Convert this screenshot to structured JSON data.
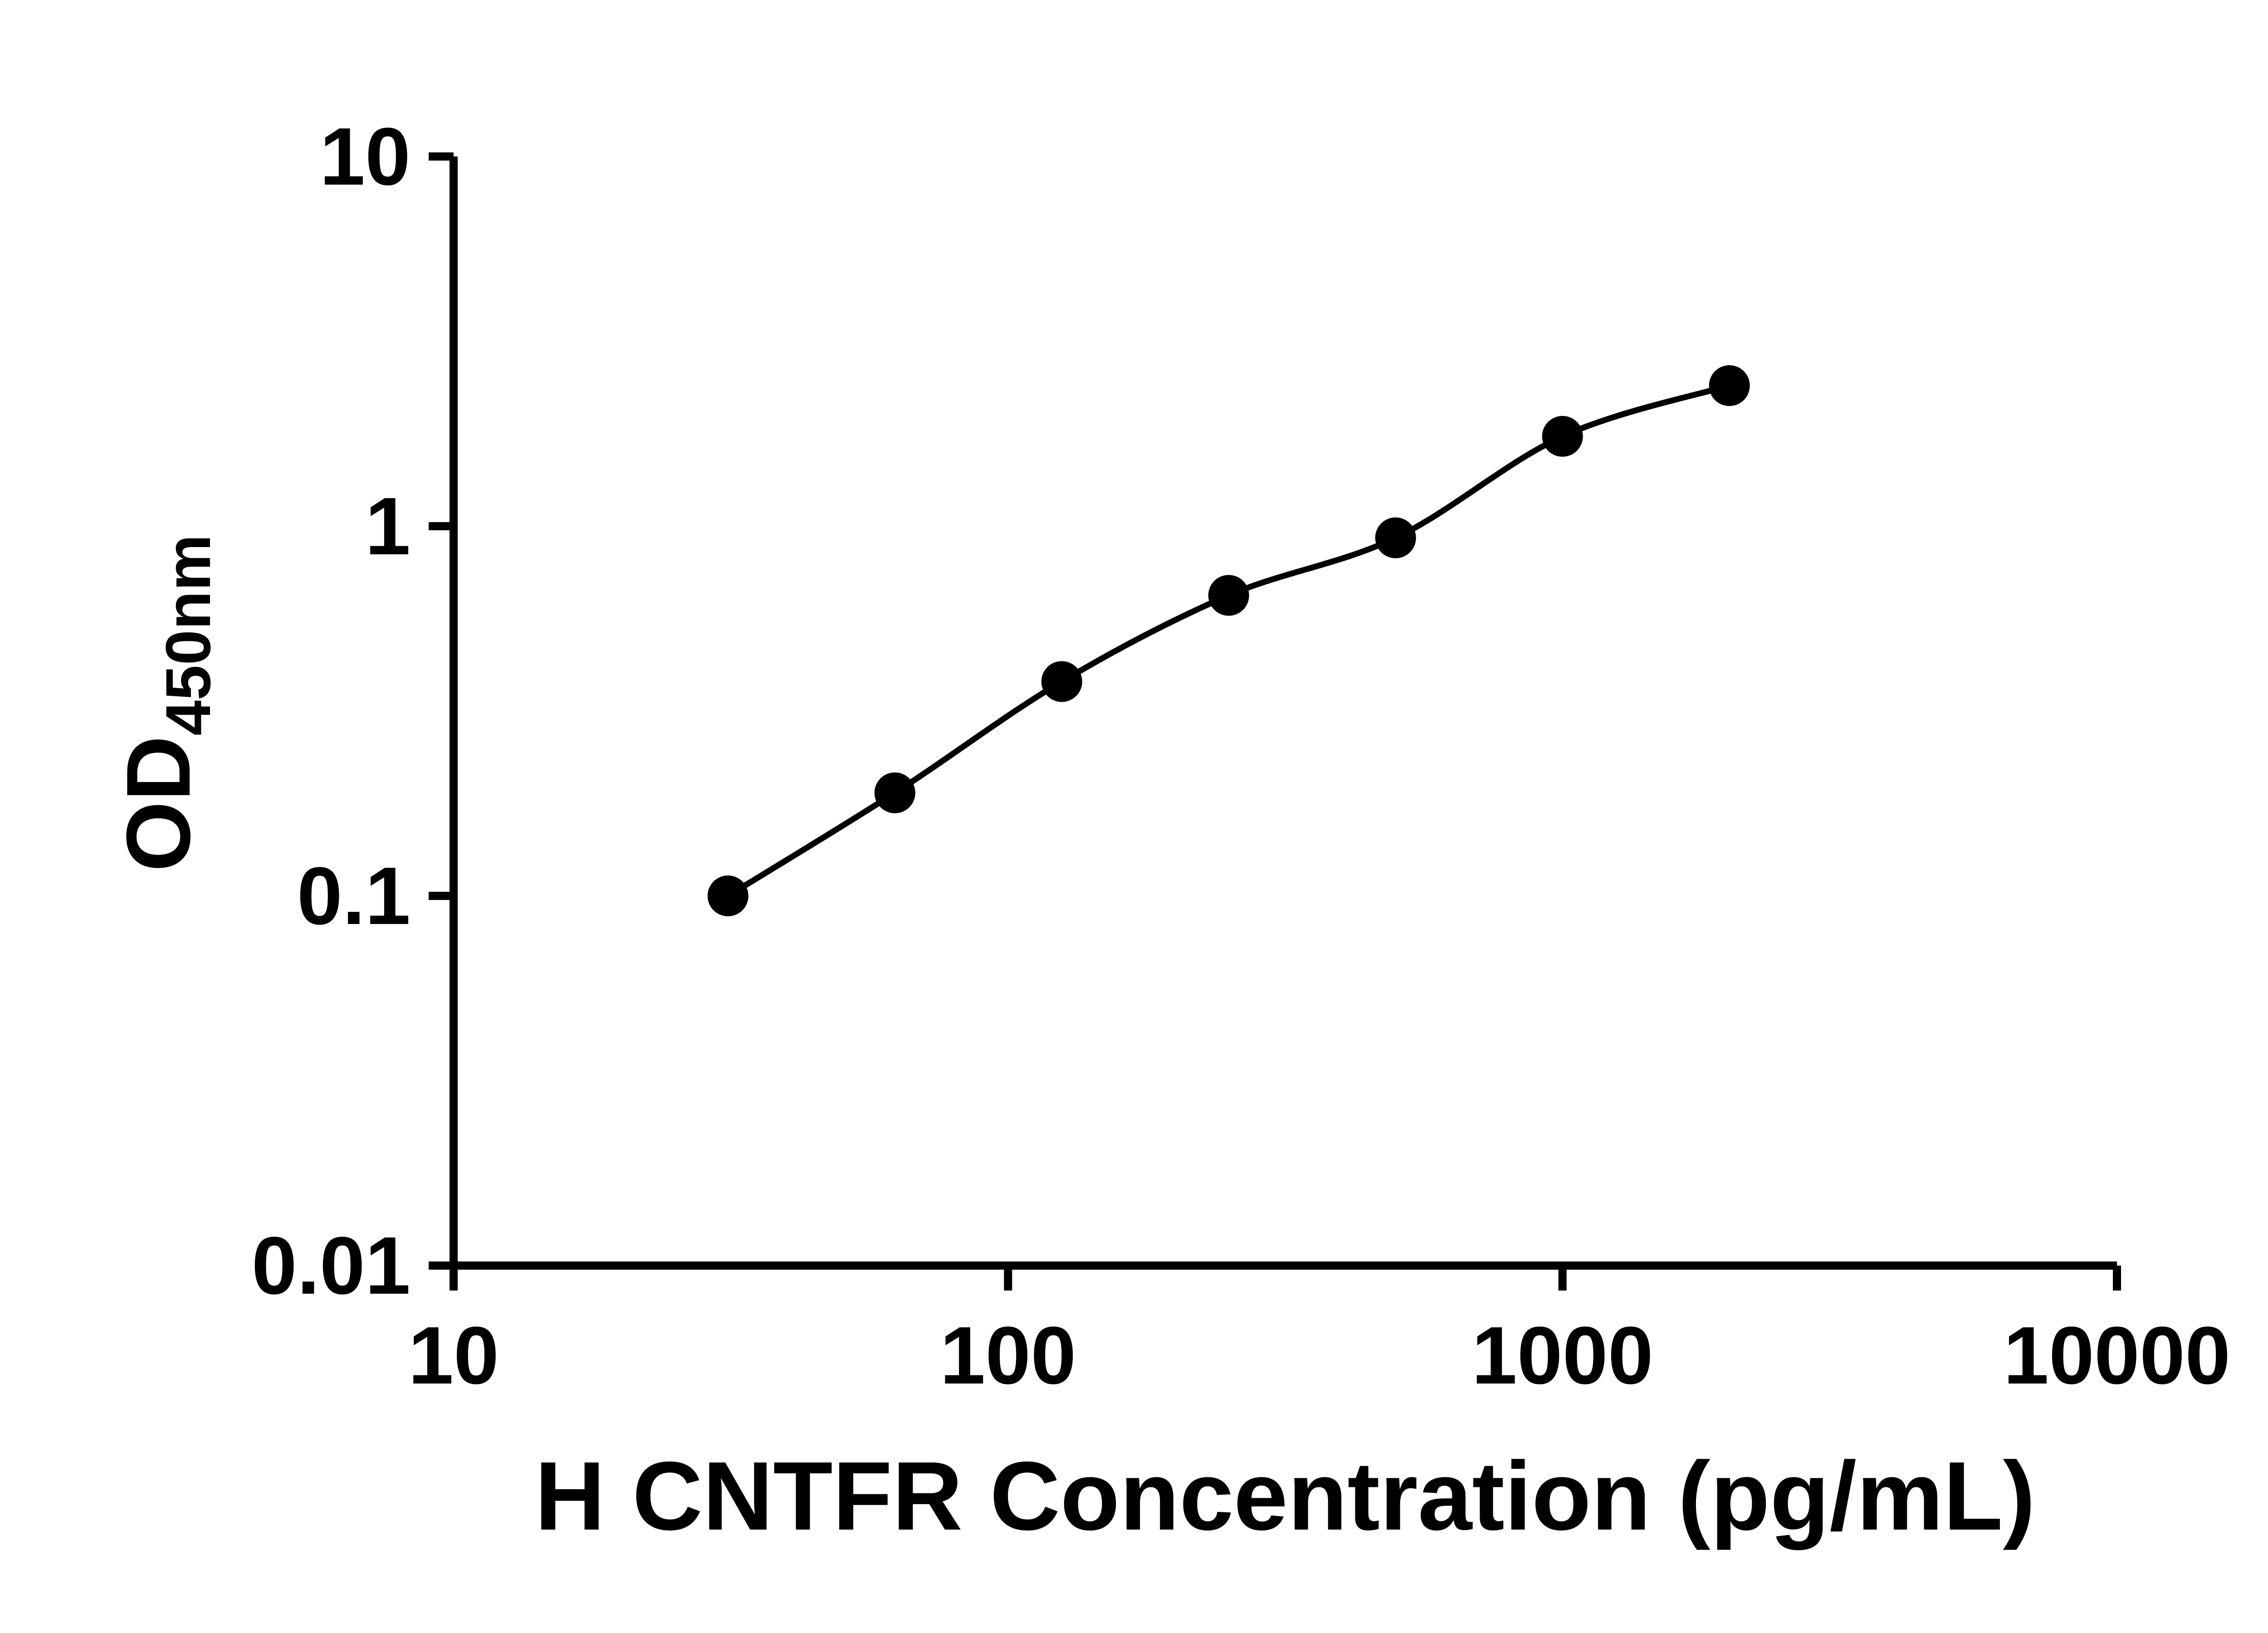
{
  "chart_data": {
    "type": "scatter",
    "title": "",
    "xlabel": "H CNTFR Concentration (pg/mL)",
    "ylabel": "OD450nm",
    "ylabel_main": "OD",
    "ylabel_sub": "450nm",
    "x_scale": "log",
    "y_scale": "log",
    "xlim": [
      10,
      10000
    ],
    "ylim": [
      0.01,
      10
    ],
    "grid": false,
    "legend_position": "none",
    "x_ticks": [
      {
        "value": 10,
        "label": "10"
      },
      {
        "value": 100,
        "label": "100"
      },
      {
        "value": 1000,
        "label": "1000"
      },
      {
        "value": 10000,
        "label": "10000"
      }
    ],
    "y_ticks": [
      {
        "value": 0.01,
        "label": "0.01"
      },
      {
        "value": 0.1,
        "label": "0.1"
      },
      {
        "value": 1,
        "label": "1"
      },
      {
        "value": 10,
        "label": "10"
      }
    ],
    "series": [
      {
        "x": [
          31.25,
          62.5,
          125,
          250,
          500,
          1000,
          2000
        ],
        "y": [
          0.1,
          0.19,
          0.38,
          0.65,
          0.93,
          1.75,
          2.4
        ],
        "marker": "circle",
        "line": "smooth",
        "color": "#000000"
      }
    ]
  },
  "colors": {
    "background": "#ffffff",
    "axis": "#000000",
    "curve": "#000000",
    "marker": "#000000"
  }
}
